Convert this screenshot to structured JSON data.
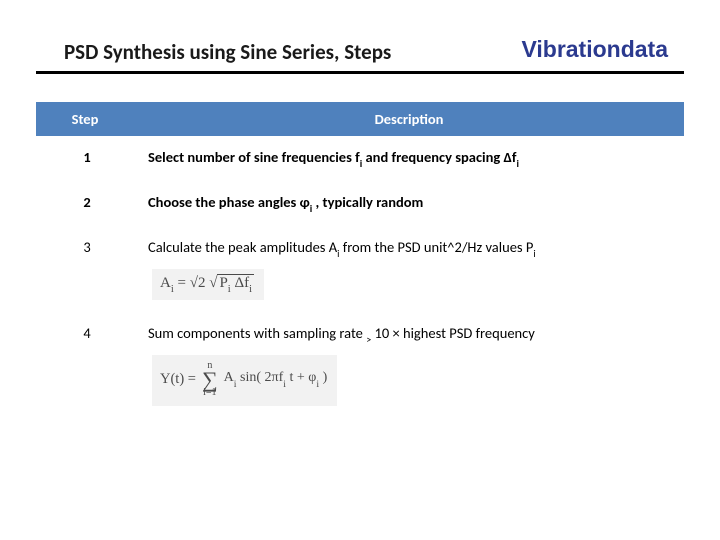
{
  "header": {
    "title": "PSD Synthesis using Sine Series, Steps",
    "brand": "Vibrationdata"
  },
  "table": {
    "header_bg": "#4f81bd",
    "header_fg": "#ffffff",
    "columns": {
      "step": "Step",
      "desc": "Description"
    },
    "rows": [
      {
        "step": "1",
        "bold": true,
        "desc_parts": [
          "Select number of sine frequencies f",
          "i",
          "  and frequency spacing Δf",
          "i"
        ]
      },
      {
        "step": "2",
        "bold": true,
        "desc_parts": [
          "Choose the phase angles φ",
          "i",
          " , typically random"
        ]
      },
      {
        "step": "3",
        "bold": false,
        "desc_parts": [
          "Calculate the peak amplitudes A",
          "i",
          "  from the PSD unit^2/Hz values P",
          "i"
        ],
        "formula1": {
          "lhs": "A",
          "lhs_sub": "i",
          "eq": " = ",
          "root_pre": "√2 ",
          "under_root": [
            "P",
            "i",
            " Δf",
            "i"
          ]
        }
      },
      {
        "step": "4",
        "bold": false,
        "desc_parts": [
          "Sum components with sampling rate ",
          ">",
          " 10 × highest PSD frequency"
        ],
        "underline_index": 1,
        "formula2": {
          "lhs": "Y(t) = ",
          "sum_top": "n",
          "sum_bot": "i=1",
          "body": [
            "A",
            "i",
            " sin( 2πf",
            "i",
            " t + φ",
            "i",
            " )"
          ]
        }
      }
    ]
  },
  "colors": {
    "brand": "#2b3a8f",
    "rule": "#000000",
    "formula_bg": "#f2f2f2",
    "formula_fg": "#4a4a4a"
  }
}
